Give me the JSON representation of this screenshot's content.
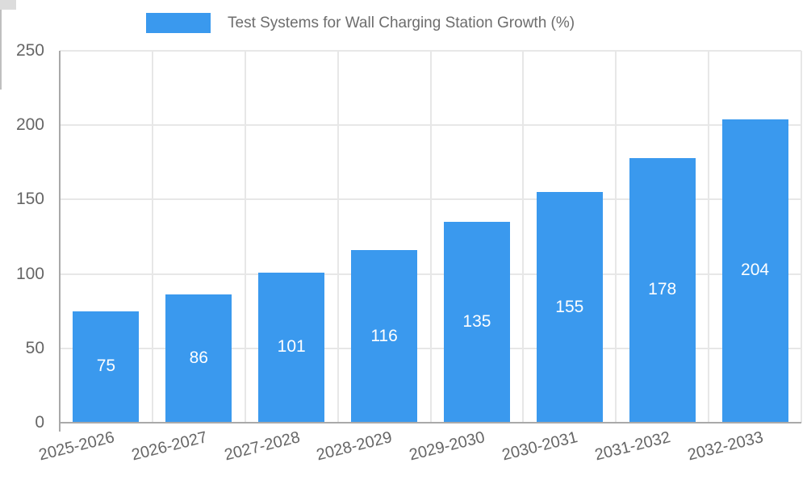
{
  "chart_data": {
    "type": "bar",
    "title": "Test Systems for Wall Charging Station Growth (%)",
    "categories": [
      "2025-2026",
      "2026-2027",
      "2027-2028",
      "2028-2029",
      "2029-2030",
      "2030-2031",
      "2031-2032",
      "2032-2033"
    ],
    "values": [
      75,
      86,
      101,
      116,
      135,
      155,
      178,
      204
    ],
    "xlabel": "",
    "ylabel": "",
    "ylim": [
      0,
      250
    ],
    "yticks": [
      0,
      50,
      100,
      150,
      200,
      250
    ],
    "grid": "on",
    "legend_position": "top",
    "colors": {
      "bar": "#3a99ee",
      "bar_value_text": "#ffffff",
      "axis_line": "#a9a9a9",
      "grid_line": "#e7e7e7",
      "tick_text": "#666666",
      "legend_text": "#6d6d6d",
      "background": "#ffffff"
    }
  }
}
